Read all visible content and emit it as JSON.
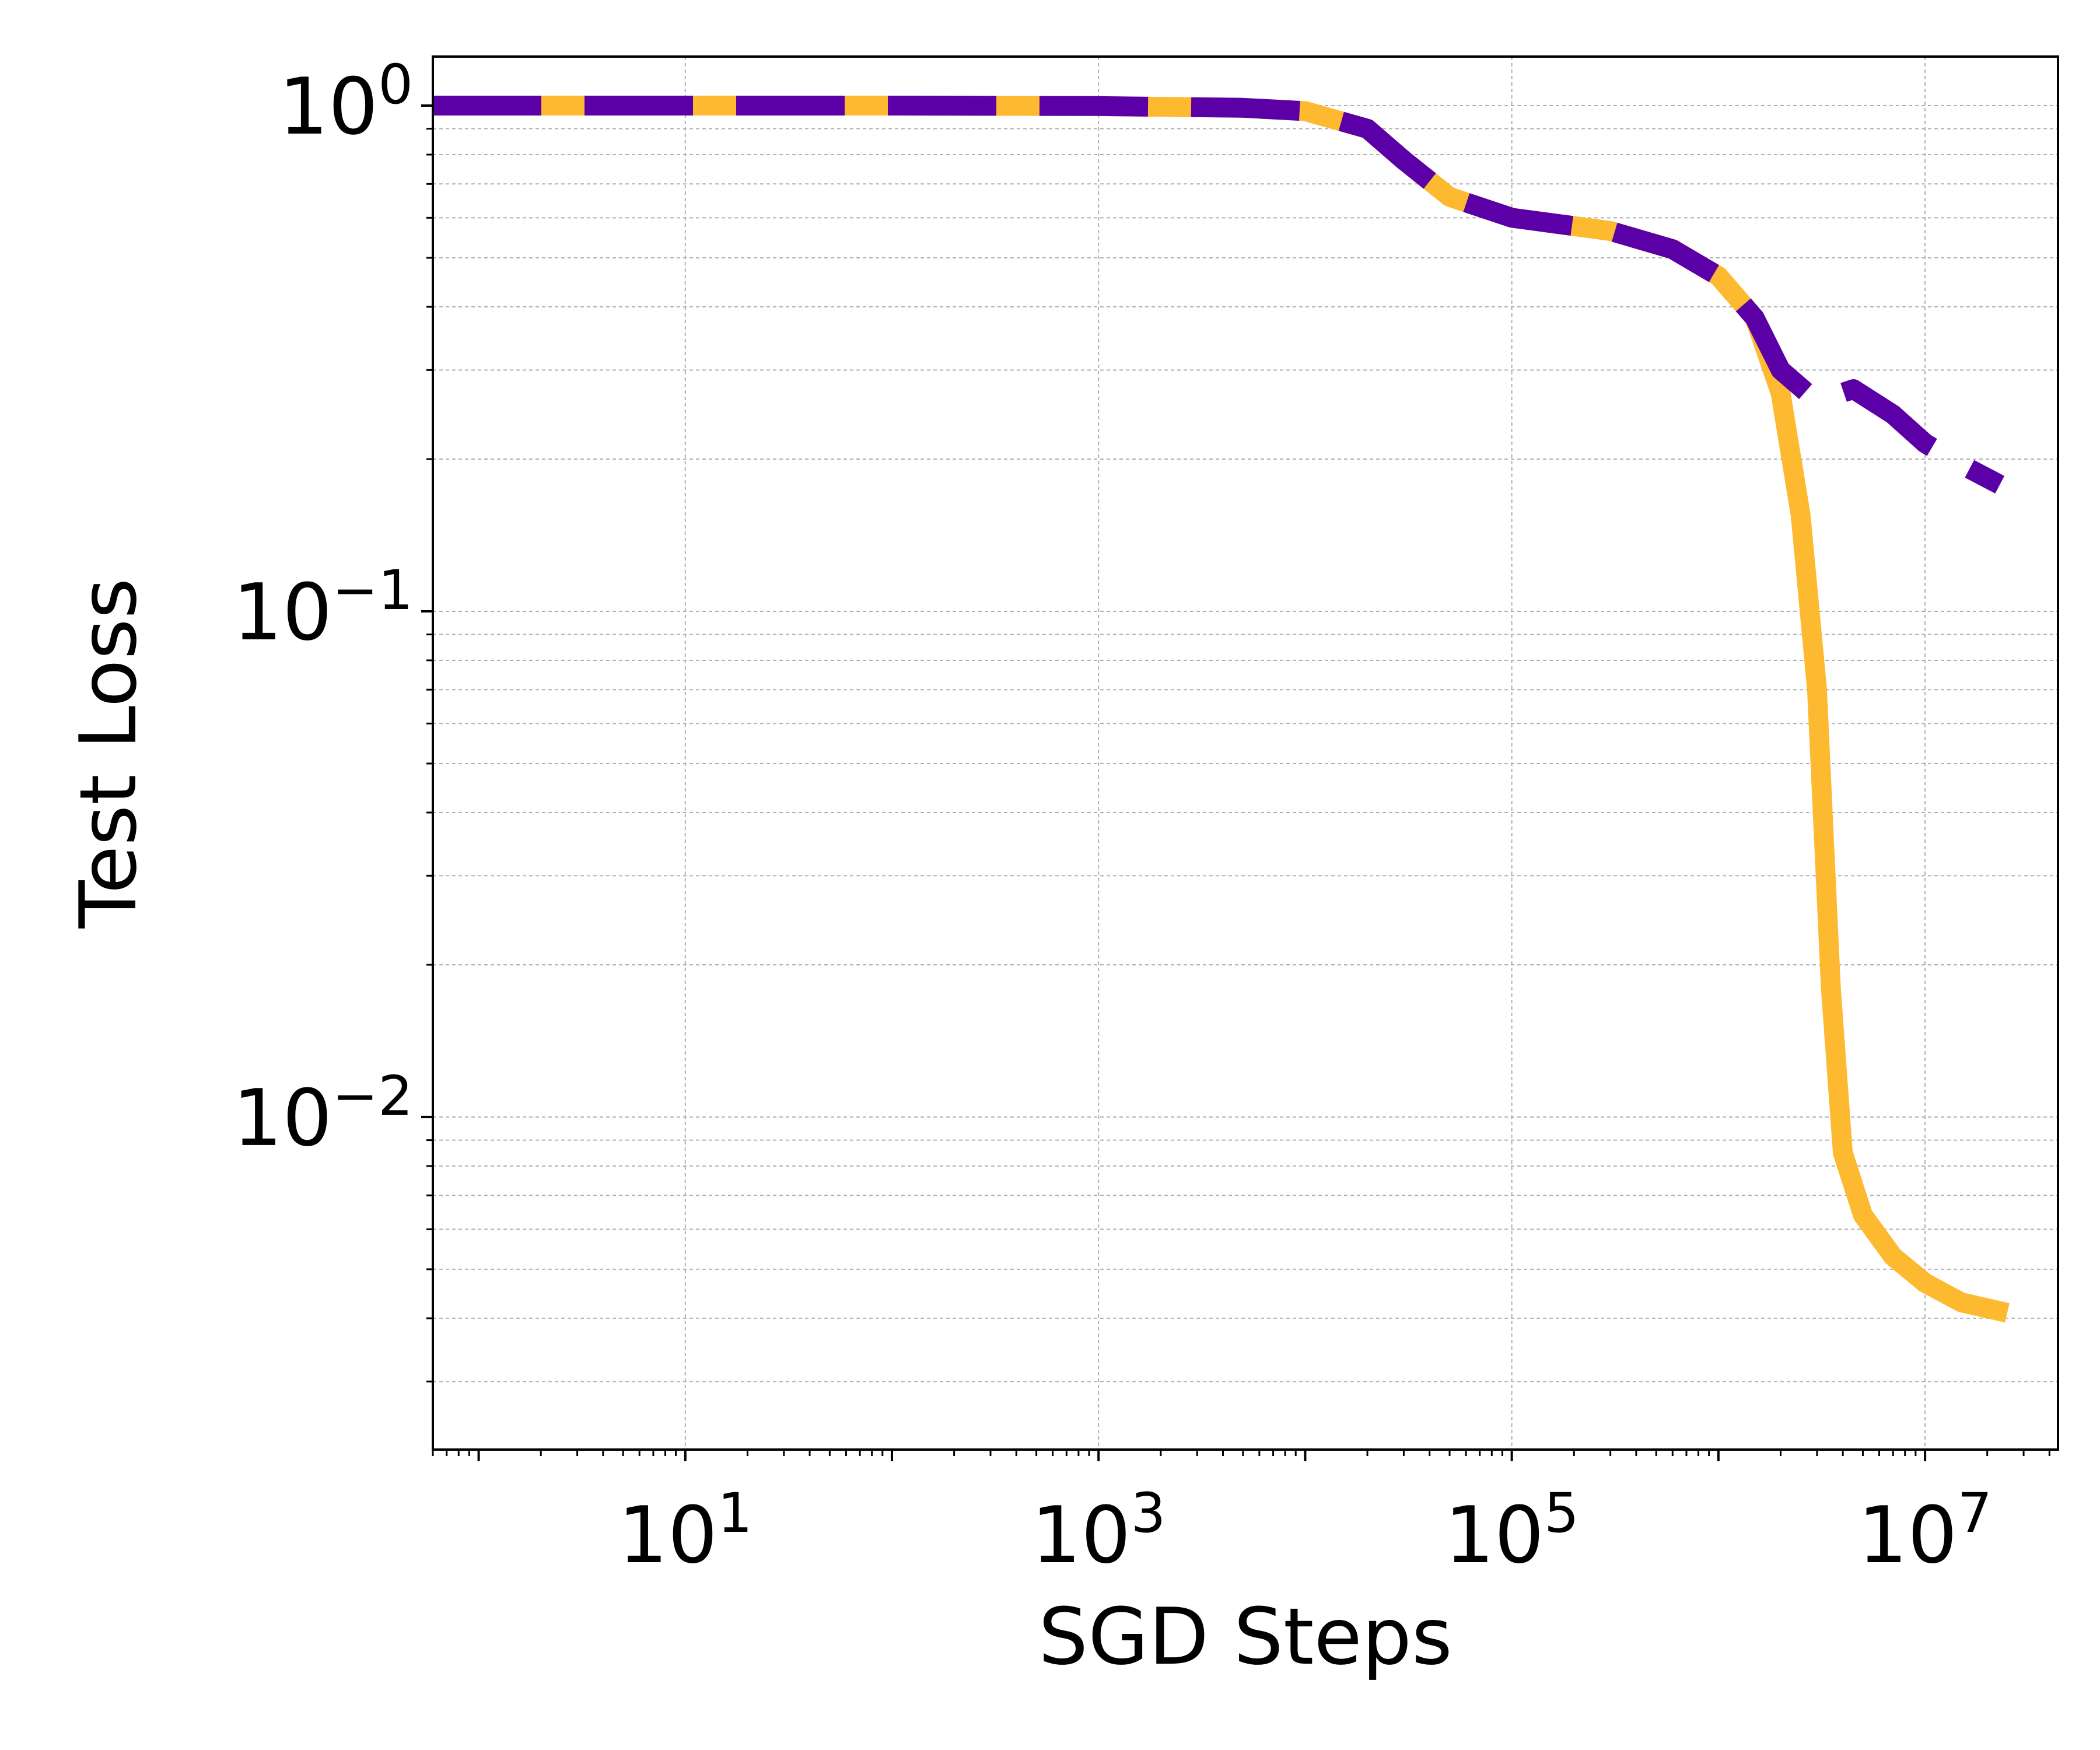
{
  "chart_data": {
    "type": "line",
    "xlabel": "SGD Steps",
    "ylabel": "Test Loss",
    "xscale": "log",
    "yscale": "log",
    "xlim": [
      0.6,
      44000000
    ],
    "ylim": [
      0.0022,
      1.25
    ],
    "grid": true,
    "x_ticks": [
      {
        "base": "10",
        "exp": "1",
        "value": 10
      },
      {
        "base": "10",
        "exp": "3",
        "value": 1000
      },
      {
        "base": "10",
        "exp": "5",
        "value": 100000
      },
      {
        "base": "10",
        "exp": "7",
        "value": 10000000
      }
    ],
    "y_ticks": [
      {
        "base": "10",
        "exp": "0",
        "value": 1
      },
      {
        "base": "10",
        "exp": "−1",
        "value": 0.1
      },
      {
        "base": "10",
        "exp": "−2",
        "value": 0.01
      }
    ],
    "series": [
      {
        "color": "#fdb92f",
        "style": "solid",
        "points": [
          [
            0.6,
            1.0
          ],
          [
            100,
            1.0
          ],
          [
            1000,
            0.998
          ],
          [
            5000,
            0.99
          ],
          [
            10000,
            0.975
          ],
          [
            20000,
            0.9
          ],
          [
            30000,
            0.78
          ],
          [
            50000,
            0.66
          ],
          [
            100000,
            0.6
          ],
          [
            300000,
            0.565
          ],
          [
            600000,
            0.52
          ],
          [
            1000000,
            0.46
          ],
          [
            1500000,
            0.38
          ],
          [
            2000000,
            0.27
          ],
          [
            2500000,
            0.155
          ],
          [
            3000000,
            0.07
          ],
          [
            3500000,
            0.018
          ],
          [
            4000000,
            0.0085
          ],
          [
            5000000,
            0.0064
          ],
          [
            7000000,
            0.0053
          ],
          [
            10000000,
            0.0047
          ],
          [
            15000000,
            0.0043
          ],
          [
            25000000,
            0.0041
          ]
        ]
      },
      {
        "color": "#5a00a6",
        "style": "dashed",
        "points": [
          [
            0.6,
            1.0
          ],
          [
            100,
            1.0
          ],
          [
            1000,
            0.998
          ],
          [
            5000,
            0.99
          ],
          [
            10000,
            0.975
          ],
          [
            20000,
            0.9
          ],
          [
            30000,
            0.78
          ],
          [
            50000,
            0.66
          ],
          [
            100000,
            0.6
          ],
          [
            300000,
            0.565
          ],
          [
            600000,
            0.52
          ],
          [
            1000000,
            0.46
          ],
          [
            1500000,
            0.38
          ],
          [
            2000000,
            0.3
          ],
          [
            3000000,
            0.26
          ],
          [
            4500000,
            0.275
          ],
          [
            7000000,
            0.245
          ],
          [
            10000000,
            0.215
          ],
          [
            15000000,
            0.195
          ],
          [
            23000000,
            0.178
          ]
        ]
      }
    ]
  }
}
